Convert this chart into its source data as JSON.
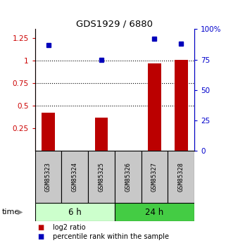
{
  "title": "GDS1929 / 6880",
  "samples": [
    "GSM85323",
    "GSM85324",
    "GSM85325",
    "GSM85326",
    "GSM85327",
    "GSM85328"
  ],
  "log2_ratio": [
    0.42,
    0.0,
    0.37,
    0.0,
    0.97,
    1.01
  ],
  "percentile_rank": [
    87,
    0,
    75,
    0,
    92,
    88
  ],
  "groups": [
    {
      "label": "6 h",
      "indices": [
        0,
        1,
        2
      ],
      "color": "#ccffcc"
    },
    {
      "label": "24 h",
      "indices": [
        3,
        4,
        5
      ],
      "color": "#44cc44"
    }
  ],
  "ylim_left": [
    0,
    1.35
  ],
  "ylim_right": [
    0,
    100
  ],
  "yticks_left": [
    0.25,
    0.5,
    0.75,
    1.0,
    1.25
  ],
  "yticks_right": [
    0,
    25,
    50,
    75,
    100
  ],
  "ytick_labels_left": [
    "0.25",
    "0.5",
    "0.75",
    "1",
    "1.25"
  ],
  "ytick_labels_right": [
    "0",
    "25",
    "50",
    "75",
    "100%"
  ],
  "hlines": [
    0.5,
    0.75,
    1.0
  ],
  "bar_color": "#bb0000",
  "dot_color": "#0000bb",
  "bar_width": 0.5,
  "left_axis_color": "#cc0000",
  "right_axis_color": "#0000cc",
  "legend_labels": [
    "log2 ratio",
    "percentile rank within the sample"
  ],
  "time_label": "time"
}
